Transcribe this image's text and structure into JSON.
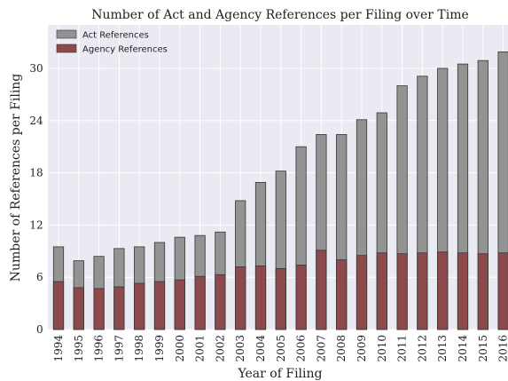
{
  "chart_data": {
    "type": "bar",
    "title": "Number of Act and Agency References per Filing over Time",
    "x_label": "Year of Filing",
    "y_label": "Number of References per Filing",
    "categories": [
      "1994",
      "1995",
      "1996",
      "1997",
      "1998",
      "1999",
      "2000",
      "2001",
      "2002",
      "2003",
      "2004",
      "2005",
      "2006",
      "2007",
      "2008",
      "2009",
      "2010",
      "2011",
      "2012",
      "2013",
      "2014",
      "2015",
      "2016"
    ],
    "series": [
      {
        "name": "Act References",
        "color": "#939393",
        "values": [
          9.5,
          7.9,
          8.4,
          9.3,
          9.5,
          10.0,
          10.6,
          10.8,
          11.2,
          14.8,
          16.9,
          18.2,
          21.0,
          22.4,
          22.4,
          24.1,
          24.9,
          28.0,
          29.1,
          30.0,
          30.5,
          30.9,
          31.9
        ]
      },
      {
        "name": "Agency References",
        "color": "#8c4a4d",
        "values": [
          5.5,
          4.8,
          4.7,
          4.9,
          5.3,
          5.5,
          5.7,
          6.1,
          6.3,
          7.2,
          7.3,
          7.0,
          7.4,
          9.1,
          8.0,
          8.5,
          8.8,
          8.7,
          8.8,
          8.9,
          8.8,
          8.7,
          8.8
        ]
      }
    ],
    "ylim": [
      0,
      35
    ],
    "yticks": [
      0,
      6,
      12,
      18,
      24,
      30
    ],
    "grid": true,
    "legend": "upper left",
    "overlap": true
  }
}
